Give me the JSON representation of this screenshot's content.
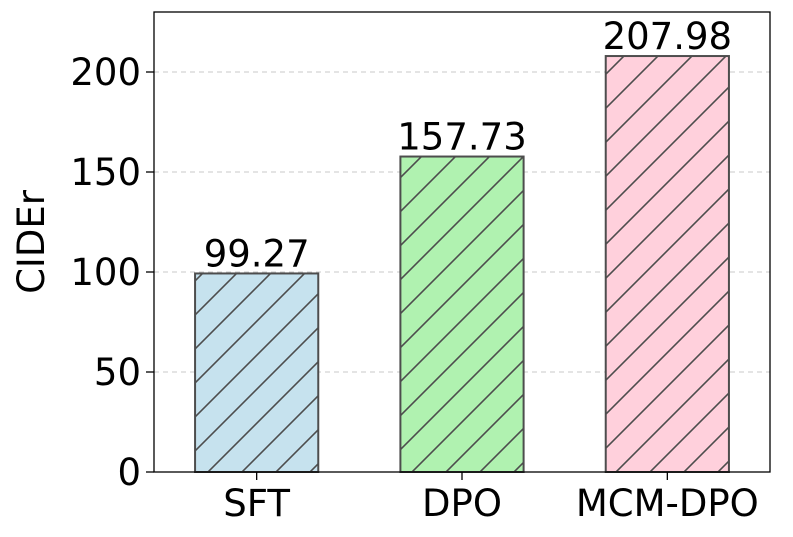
{
  "chart_data": {
    "type": "bar",
    "title": "",
    "xlabel": "",
    "ylabel": "CIDEr",
    "categories": [
      "SFT",
      "DPO",
      "MCM-DPO"
    ],
    "values": [
      99.27,
      157.73,
      207.98
    ],
    "value_labels": [
      "99.27",
      "157.73",
      "207.98"
    ],
    "ylim": [
      0,
      230
    ],
    "yticks": [
      0,
      50,
      100,
      150,
      200
    ],
    "grid": "horizontal-dashed",
    "legend": "none",
    "bar_colors": [
      "#c6e2ee",
      "#b0f2b0",
      "#ffd0dc"
    ],
    "bar_edge_color": "#4d4d4d",
    "hatch": "diagonal"
  }
}
